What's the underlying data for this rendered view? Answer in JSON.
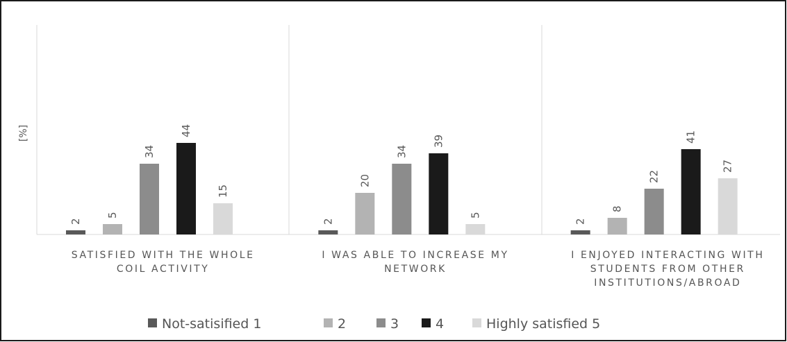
{
  "chart_data": {
    "type": "bar",
    "ylabel": "[%]",
    "ylim": [
      0,
      70
    ],
    "grid": false,
    "legend_position": "bottom",
    "categories": [
      [
        "SATISFIED WITH THE WHOLE",
        "COIL ACTIVITY"
      ],
      [
        "I WAS ABLE TO INCREASE MY",
        "NETWORK"
      ],
      [
        "I ENJOYED INTERACTING WITH",
        "STUDENTS FROM OTHER",
        "INSTITUTIONS/ABROAD"
      ]
    ],
    "series": [
      {
        "name": "Not-satisified 1",
        "color": "#595959",
        "values": [
          2,
          2,
          2
        ]
      },
      {
        "name": "2",
        "color": "#b3b3b3",
        "values": [
          5,
          20,
          8
        ]
      },
      {
        "name": "3",
        "color": "#8c8c8c",
        "values": [
          34,
          34,
          22
        ]
      },
      {
        "name": "4",
        "color": "#1a1a1a",
        "values": [
          44,
          39,
          41
        ]
      },
      {
        "name": "Highly satisfied 5",
        "color": "#d9d9d9",
        "values": [
          15,
          5,
          27
        ]
      }
    ]
  }
}
